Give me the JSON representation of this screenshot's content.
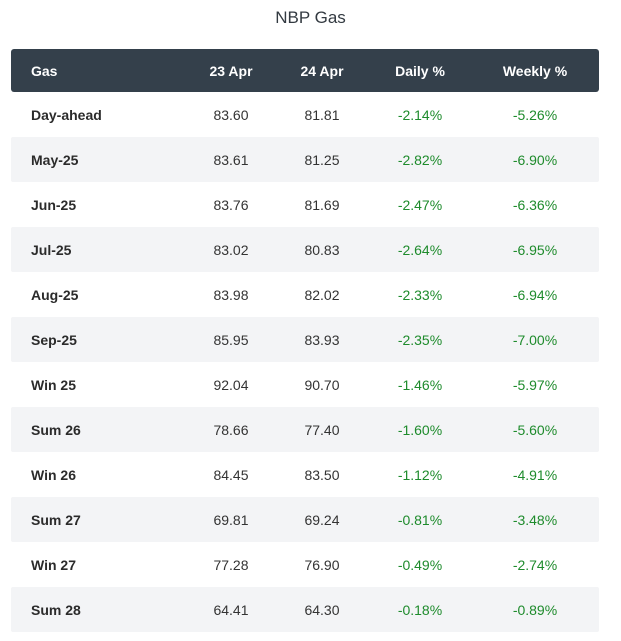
{
  "title": "NBP Gas",
  "columns": [
    "Gas",
    "23 Apr",
    "24 Apr",
    "Daily %",
    "Weekly %"
  ],
  "rows": [
    {
      "name": "Day-ahead",
      "apr23": "83.60",
      "apr24": "81.81",
      "daily": "-2.14%",
      "weekly": "-5.26%"
    },
    {
      "name": "May-25",
      "apr23": "83.61",
      "apr24": "81.25",
      "daily": "-2.82%",
      "weekly": "-6.90%"
    },
    {
      "name": "Jun-25",
      "apr23": "83.76",
      "apr24": "81.69",
      "daily": "-2.47%",
      "weekly": "-6.36%"
    },
    {
      "name": "Jul-25",
      "apr23": "83.02",
      "apr24": "80.83",
      "daily": "-2.64%",
      "weekly": "-6.95%"
    },
    {
      "name": "Aug-25",
      "apr23": "83.98",
      "apr24": "82.02",
      "daily": "-2.33%",
      "weekly": "-6.94%"
    },
    {
      "name": "Sep-25",
      "apr23": "85.95",
      "apr24": "83.93",
      "daily": "-2.35%",
      "weekly": "-7.00%"
    },
    {
      "name": "Win 25",
      "apr23": "92.04",
      "apr24": "90.70",
      "daily": "-1.46%",
      "weekly": "-5.97%"
    },
    {
      "name": "Sum 26",
      "apr23": "78.66",
      "apr24": "77.40",
      "daily": "-1.60%",
      "weekly": "-5.60%"
    },
    {
      "name": "Win 26",
      "apr23": "84.45",
      "apr24": "83.50",
      "daily": "-1.12%",
      "weekly": "-4.91%"
    },
    {
      "name": "Sum 27",
      "apr23": "69.81",
      "apr24": "69.24",
      "daily": "-0.81%",
      "weekly": "-3.48%"
    },
    {
      "name": "Win 27",
      "apr23": "77.28",
      "apr24": "76.90",
      "daily": "-0.49%",
      "weekly": "-2.74%"
    },
    {
      "name": "Sum 28",
      "apr23": "64.41",
      "apr24": "64.30",
      "daily": "-0.18%",
      "weekly": "-0.89%"
    }
  ],
  "colors": {
    "header_bg": "#34404b",
    "alt_row_bg": "#f3f4f6",
    "change_text": "#1e8b2c"
  }
}
